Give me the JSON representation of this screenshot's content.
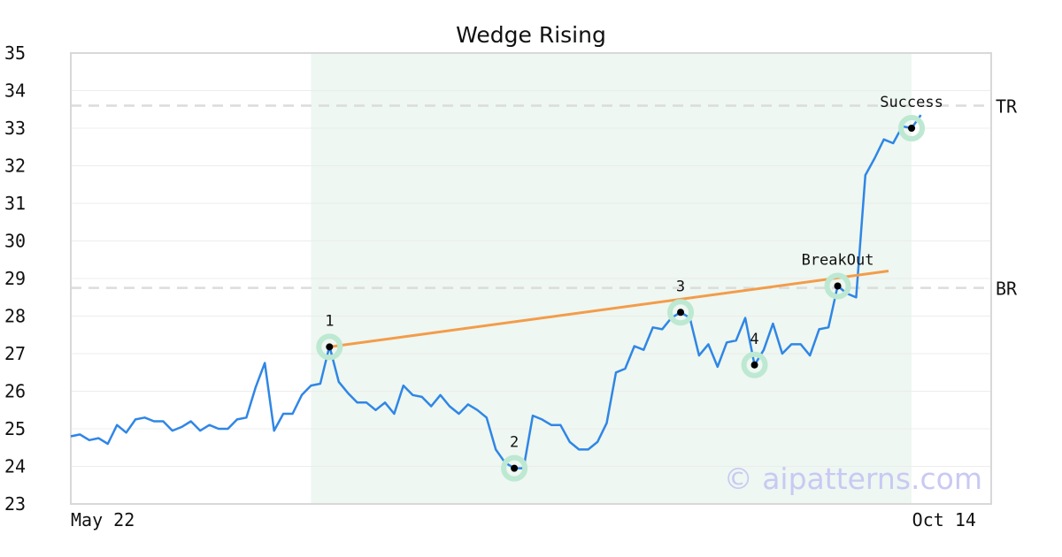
{
  "chart_data": {
    "type": "line",
    "title": "Wedge Rising",
    "ylim": [
      23,
      35
    ],
    "yticks": [
      23,
      24,
      25,
      26,
      27,
      28,
      29,
      30,
      31,
      32,
      33,
      34,
      35
    ],
    "x_tick_labels": [
      {
        "label": "May 22",
        "index": 0
      },
      {
        "label": "Oct 14",
        "index": 93
      }
    ],
    "grid": true,
    "series": [
      {
        "color": "#2f86e6",
        "values": [
          24.8,
          24.85,
          24.7,
          24.75,
          24.6,
          25.1,
          24.9,
          25.25,
          25.3,
          25.2,
          25.2,
          24.95,
          25.05,
          25.2,
          24.95,
          25.1,
          25.0,
          25.0,
          25.25,
          25.3,
          26.1,
          26.75,
          24.95,
          25.4,
          25.4,
          25.9,
          26.15,
          26.2,
          27.2,
          26.25,
          25.95,
          25.7,
          25.7,
          25.5,
          25.7,
          25.4,
          26.15,
          25.9,
          25.85,
          25.6,
          25.9,
          25.6,
          25.4,
          25.65,
          25.5,
          25.3,
          24.45,
          24.1,
          23.95,
          23.95,
          25.35,
          25.25,
          25.1,
          25.1,
          24.65,
          24.45,
          24.45,
          24.65,
          25.15,
          26.5,
          26.6,
          27.2,
          27.1,
          27.7,
          27.65,
          27.95,
          28.1,
          27.95,
          26.95,
          27.25,
          26.65,
          27.3,
          27.35,
          27.95,
          26.7,
          27.1,
          27.8,
          27.0,
          27.25,
          27.25,
          26.95,
          27.65,
          27.7,
          28.8,
          28.6,
          28.5,
          31.75,
          32.2,
          32.7,
          32.6,
          33.05,
          33.0,
          33.35
        ]
      }
    ],
    "trendline": {
      "color": "#f39c4a",
      "from_index": 28,
      "from_value": 27.18,
      "to_index": 88.5,
      "to_value": 29.2
    },
    "shaded_range": {
      "from_index": 26,
      "to_index": 91,
      "color": "#eef7f1"
    },
    "reference_lines": [
      {
        "label": "TR",
        "value": 33.6
      },
      {
        "label": "BR",
        "value": 28.75
      }
    ],
    "pattern_points": [
      {
        "label": "1",
        "index": 28,
        "value": 27.18
      },
      {
        "label": "2",
        "index": 48,
        "value": 23.95
      },
      {
        "label": "3",
        "index": 66,
        "value": 28.1
      },
      {
        "label": "4",
        "index": 74,
        "value": 26.7
      },
      {
        "label": "BreakOut",
        "index": 83,
        "value": 28.8
      },
      {
        "label": "Success",
        "index": 91,
        "value": 33.0
      }
    ],
    "marker_halo_color": "#bde8d2"
  },
  "watermark": "© aipatterns.com"
}
